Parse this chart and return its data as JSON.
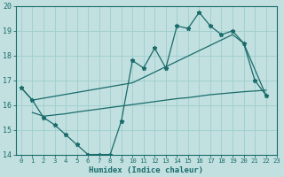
{
  "bg_color": "#c2e0e0",
  "grid_color": "#9ecece",
  "line_color": "#1a6b6b",
  "xlabel": "Humidex (Indice chaleur)",
  "xlim": [
    -0.5,
    23
  ],
  "ylim": [
    14,
    20
  ],
  "yticks": [
    14,
    15,
    16,
    17,
    18,
    19,
    20
  ],
  "xticks": [
    0,
    1,
    2,
    3,
    4,
    5,
    6,
    7,
    8,
    9,
    10,
    11,
    12,
    13,
    14,
    15,
    16,
    17,
    18,
    19,
    20,
    21,
    22,
    23
  ],
  "line_zigzag_x": [
    0,
    1,
    2,
    3,
    4,
    5,
    6,
    7,
    8,
    9,
    10,
    11,
    12,
    13,
    14,
    15,
    16,
    17,
    18,
    19,
    20,
    21,
    22
  ],
  "line_zigzag_y": [
    16.7,
    16.2,
    15.5,
    15.2,
    14.8,
    14.4,
    14.0,
    14.0,
    14.0,
    15.35,
    17.8,
    17.5,
    18.3,
    17.5,
    19.2,
    19.1,
    19.75,
    19.2,
    18.85,
    19.0,
    18.5,
    17.0,
    16.4
  ],
  "line_upper_x": [
    0,
    1,
    10,
    19,
    20,
    22
  ],
  "line_upper_y": [
    16.7,
    16.2,
    16.9,
    18.85,
    18.5,
    16.4
  ],
  "line_lower_x": [
    1,
    2,
    3,
    4,
    5,
    6,
    7,
    8,
    9,
    10,
    11,
    12,
    13,
    14,
    15,
    16,
    17,
    18,
    19,
    20,
    21,
    22
  ],
  "line_lower_y": [
    15.7,
    15.55,
    15.6,
    15.65,
    15.72,
    15.78,
    15.84,
    15.9,
    15.96,
    16.02,
    16.08,
    16.14,
    16.2,
    16.26,
    16.3,
    16.36,
    16.42,
    16.46,
    16.5,
    16.54,
    16.57,
    16.6
  ]
}
